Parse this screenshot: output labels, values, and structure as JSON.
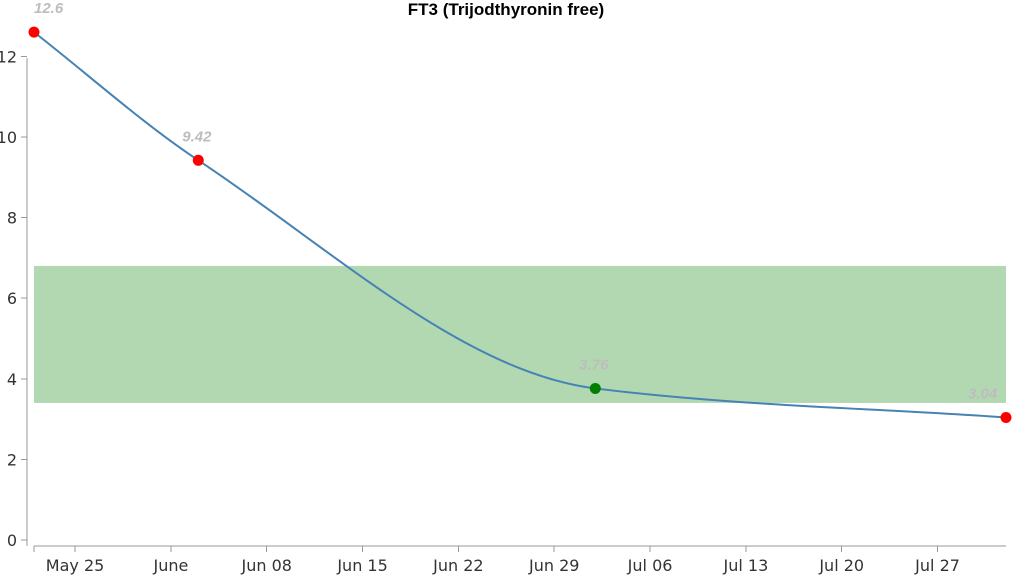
{
  "chart_data": {
    "type": "line",
    "title": "FT3 (Trijodthyronin free)",
    "xlabel": "",
    "ylabel": "",
    "ylim": [
      0,
      13
    ],
    "xlim": [
      "2024-05-22",
      "2024-08-01"
    ],
    "y_ticks": [
      {
        "value": 0,
        "label": "0"
      },
      {
        "value": 2,
        "label": "2"
      },
      {
        "value": 4,
        "label": "4"
      },
      {
        "value": 6,
        "label": "6"
      },
      {
        "value": 8,
        "label": "8"
      },
      {
        "value": 10,
        "label": "10"
      },
      {
        "value": 12,
        "label": "12"
      }
    ],
    "x_ticks": [
      {
        "date": "2024-05-25",
        "label": "May 25"
      },
      {
        "date": "2024-06-01",
        "label": "June"
      },
      {
        "date": "2024-06-08",
        "label": "Jun 08"
      },
      {
        "date": "2024-06-15",
        "label": "Jun 15"
      },
      {
        "date": "2024-06-22",
        "label": "Jun 22"
      },
      {
        "date": "2024-06-29",
        "label": "Jun 29"
      },
      {
        "date": "2024-07-06",
        "label": "Jul 06"
      },
      {
        "date": "2024-07-13",
        "label": "Jul 13"
      },
      {
        "date": "2024-07-20",
        "label": "Jul 20"
      },
      {
        "date": "2024-07-27",
        "label": "Jul 27"
      }
    ],
    "reference_range": {
      "low": 3.4,
      "high": 6.8,
      "color": "#b2d8b2"
    },
    "line_color": "#4682b4",
    "grid": false,
    "series": [
      {
        "points": [
          {
            "date": "2024-05-22",
            "value": 12.6,
            "label": "12.6",
            "color": "#ff0000"
          },
          {
            "date": "2024-06-03",
            "value": 9.42,
            "label": "9.42",
            "color": "#ff0000"
          },
          {
            "date": "2024-07-02",
            "value": 3.76,
            "label": "3.76",
            "color": "#008000"
          },
          {
            "date": "2024-08-01",
            "value": 3.04,
            "label": "3.04",
            "color": "#ff0000"
          }
        ]
      }
    ]
  }
}
